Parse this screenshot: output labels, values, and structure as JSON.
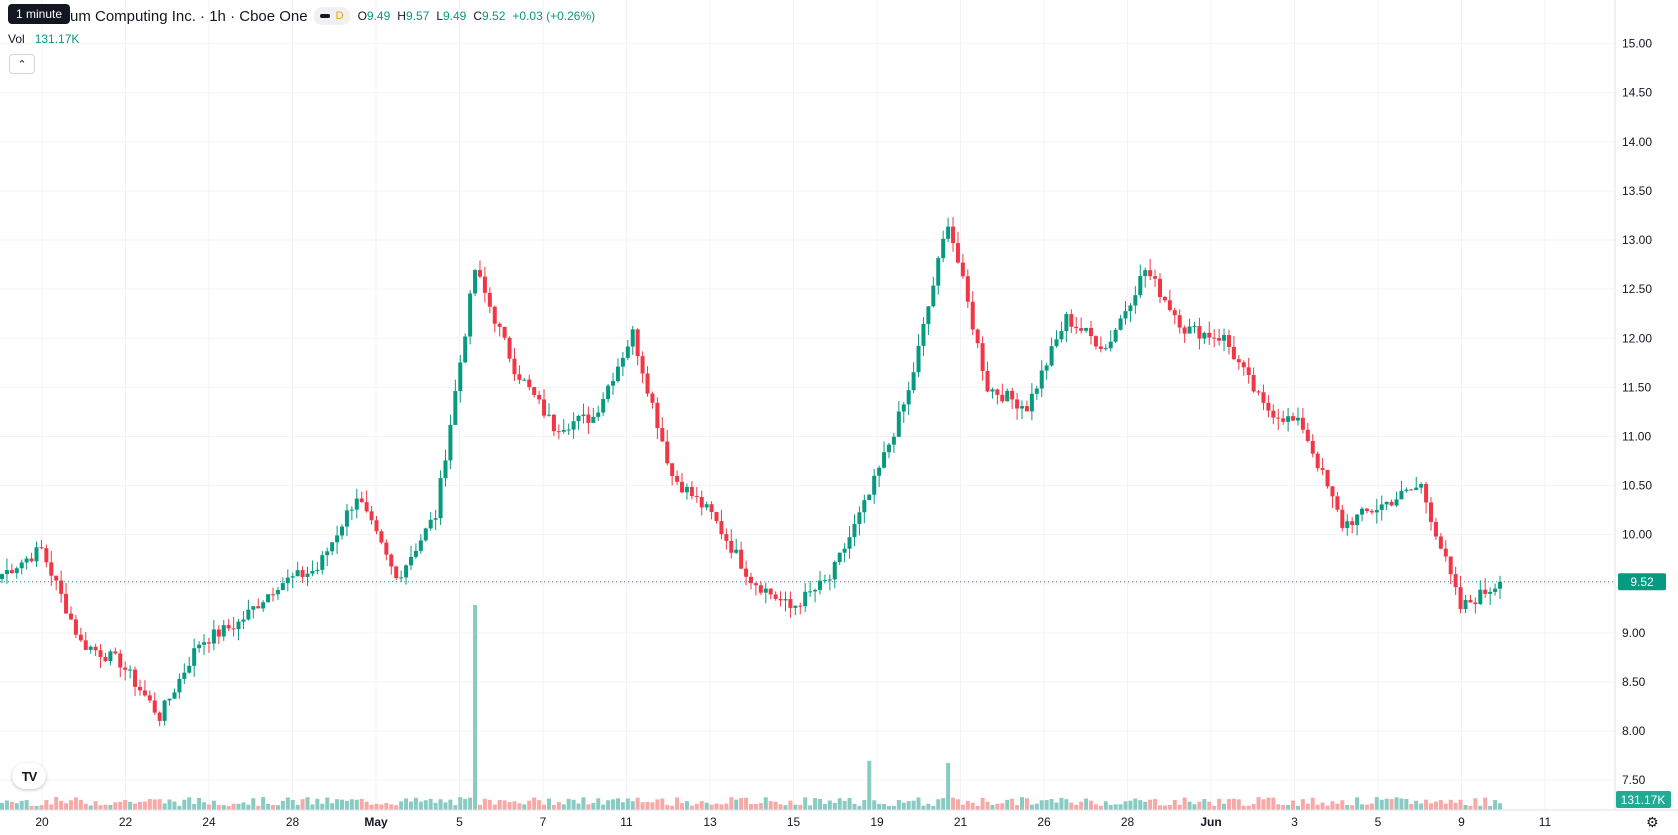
{
  "header": {
    "title": "um Computing Inc. · 1h · Cboe One",
    "tooltip": "1 minute",
    "day_badge": "D",
    "o_label": "O",
    "o": "9.49",
    "h_label": "H",
    "h": "9.57",
    "l_label": "L",
    "l": "9.49",
    "c_label": "C",
    "c": "9.52",
    "change": "+0.03 (+0.26%)",
    "vol_label": "Vol",
    "vol_value": "131.17K"
  },
  "colors": {
    "up": "#089981",
    "down": "#f23645",
    "vol_up": "#89cbc3",
    "vol_down": "#f7a9a7",
    "last_price": "#089981",
    "grid": "#f0f3fa"
  },
  "icons": {
    "collapse": "chevron-up-icon",
    "logo": "tradingview-logo-icon",
    "settings": "settings-icon"
  },
  "chart_data": {
    "type": "candlestick",
    "interval": "1h",
    "ylim": [
      7.4,
      15.2
    ],
    "y_ticks": [
      "7.50",
      "8.00",
      "8.50",
      "9.00",
      "9.50",
      "10.00",
      "10.50",
      "11.00",
      "11.50",
      "12.00",
      "12.50",
      "13.00",
      "13.50",
      "14.00",
      "14.50",
      "15.00"
    ],
    "x_ticks": [
      "20",
      "22",
      "24",
      "28",
      "May",
      "5",
      "7",
      "11",
      "13",
      "15",
      "19",
      "21",
      "26",
      "28",
      "Jun",
      "3",
      "5",
      "9",
      "11"
    ],
    "last_price": "9.52",
    "last_volume": "131.17K",
    "keypoints": [
      {
        "t": "20",
        "price": 9.6
      },
      {
        "t": "22",
        "price": 9.85
      },
      {
        "t": "24",
        "price": 8.9
      },
      {
        "t": "28",
        "price": 8.7
      },
      {
        "t": "28b",
        "price": 8.15
      },
      {
        "t": "May",
        "price": 8.9
      },
      {
        "t": "4",
        "price": 9.1
      },
      {
        "t": "5",
        "price": 9.5
      },
      {
        "t": "6",
        "price": 9.65
      },
      {
        "t": "7",
        "price": 10.4
      },
      {
        "t": "8",
        "price": 9.55
      },
      {
        "t": "11",
        "price": 10.2
      },
      {
        "t": "12",
        "price": 12.7
      },
      {
        "t": "12b",
        "price": 11.7
      },
      {
        "t": "13",
        "price": 11.1
      },
      {
        "t": "14",
        "price": 11.2
      },
      {
        "t": "14b",
        "price": 12.05
      },
      {
        "t": "15",
        "price": 10.6
      },
      {
        "t": "16",
        "price": 10.2
      },
      {
        "t": "17",
        "price": 9.55
      },
      {
        "t": "19",
        "price": 9.25
      },
      {
        "t": "20b",
        "price": 9.55
      },
      {
        "t": "21",
        "price": 10.4
      },
      {
        "t": "22b",
        "price": 11.45
      },
      {
        "t": "23",
        "price": 13.2
      },
      {
        "t": "26",
        "price": 11.5
      },
      {
        "t": "27",
        "price": 11.3
      },
      {
        "t": "28c",
        "price": 12.2
      },
      {
        "t": "29",
        "price": 11.9
      },
      {
        "t": "Jun",
        "price": 12.7
      },
      {
        "t": "2",
        "price": 12.1
      },
      {
        "t": "3",
        "price": 12.0
      },
      {
        "t": "4",
        "price": 11.3
      },
      {
        "t": "4b",
        "price": 11.1
      },
      {
        "t": "5",
        "price": 10.1
      },
      {
        "t": "6",
        "price": 10.3
      },
      {
        "t": "9",
        "price": 10.5
      },
      {
        "t": "9b",
        "price": 9.25
      },
      {
        "t": "10",
        "price": 9.52
      }
    ],
    "volume_spikes": [
      {
        "t": "12",
        "value": 1.0
      },
      {
        "t": "21",
        "value": 0.24
      },
      {
        "t": "23",
        "value": 0.23
      }
    ]
  }
}
